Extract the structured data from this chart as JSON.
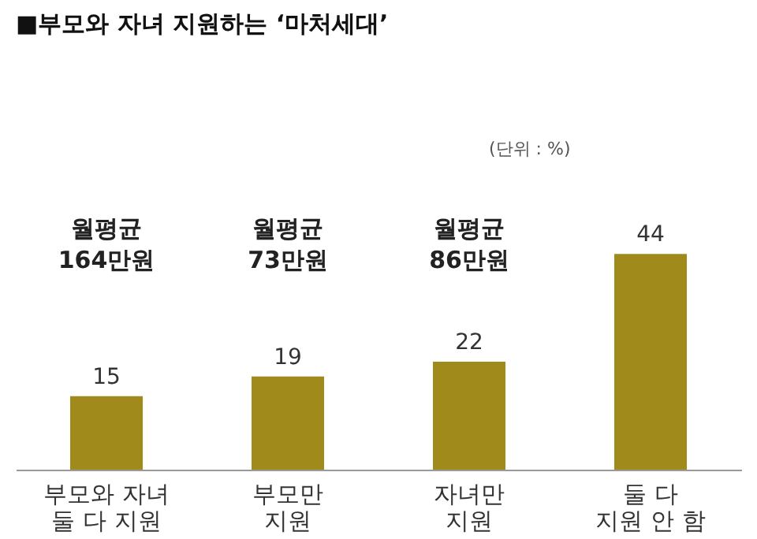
{
  "chart_data": {
    "type": "bar",
    "title": "■부모와 자녀 지원하는 ‘마처세대’",
    "categories": [
      "부모와 자녀\n둘 다 지원",
      "부모만\n지원",
      "자녀만\n지원",
      "둘 다\n지원 안 함"
    ],
    "values": [
      15,
      19,
      22,
      44
    ],
    "color": "#a08a1c",
    "data_labels": true,
    "annotations": [
      "(단위 : %)",
      "월평균\n164만원",
      "월평균\n73만원",
      "월평균\n86만원"
    ]
  }
}
